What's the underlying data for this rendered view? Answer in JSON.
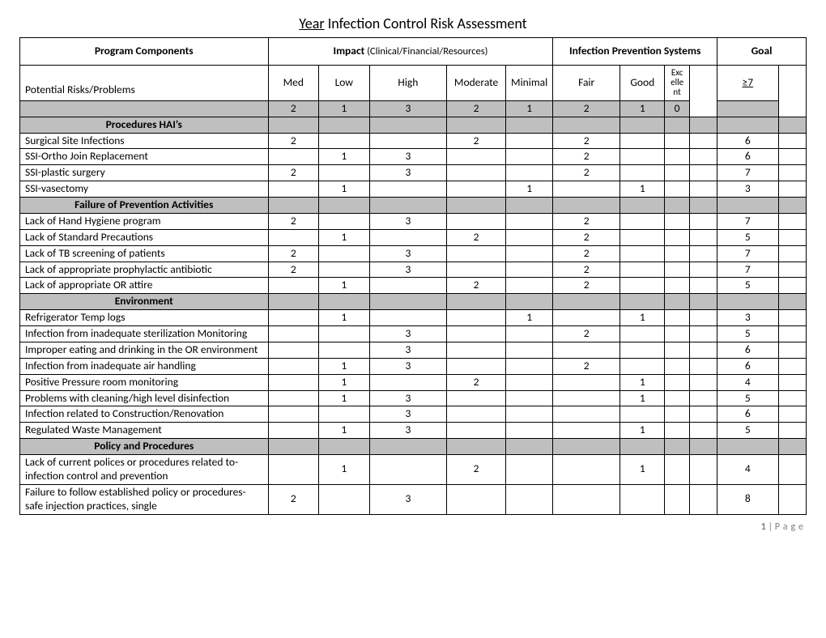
{
  "title": {
    "underlined": "Year",
    "rest": " Infection Control Risk Assessment"
  },
  "top_headers": {
    "program_components": "Program Components",
    "impact": "Impact",
    "impact_paren": " (Clinical/Financial/Resources)",
    "infection_prev": "Infection Prevention Systems",
    "goal": "Goal"
  },
  "sub_headers": {
    "potential": "Potential Risks/Problems",
    "med": "Med",
    "low": "Low",
    "high": "High",
    "moderate": "Moderate",
    "minimal": "Minimal",
    "fair": "Fair",
    "good": "Good",
    "excellent": "Excellent",
    "gt7": "≥7"
  },
  "score_row": {
    "c1": "2",
    "c2": "1",
    "c3": "3",
    "c4": "2",
    "c5": "1",
    "c6": "2",
    "c7": "1",
    "c8": "0"
  },
  "sections": [
    {
      "type": "header",
      "label": "Procedures HAI’s"
    },
    {
      "type": "row",
      "label": "Surgical Site Infections",
      "cells": [
        "2",
        "",
        "",
        "2",
        "",
        "2",
        "",
        "",
        "",
        "6",
        ""
      ]
    },
    {
      "type": "row",
      "label": "SSI-Ortho Join Replacement",
      "cells": [
        "",
        "1",
        "3",
        "",
        "",
        "2",
        "",
        "",
        "",
        "6",
        ""
      ]
    },
    {
      "type": "row",
      "label": "SSI-plastic surgery",
      "cells": [
        "2",
        "",
        "3",
        "",
        "",
        "2",
        "",
        "",
        "",
        "7",
        ""
      ]
    },
    {
      "type": "row",
      "label": "SSI-vasectomy",
      "cells": [
        "",
        "1",
        "",
        "",
        "1",
        "",
        "1",
        "",
        "",
        "3",
        ""
      ]
    },
    {
      "type": "header",
      "label": "Failure of Prevention Activities"
    },
    {
      "type": "row",
      "label": "Lack of Hand Hygiene program",
      "cells": [
        "2",
        "",
        "3",
        "",
        "",
        "2",
        "",
        "",
        "",
        "7",
        ""
      ]
    },
    {
      "type": "row",
      "label": "Lack of Standard Precautions",
      "cells": [
        "",
        "1",
        "",
        "2",
        "",
        "2",
        "",
        "",
        "",
        "5",
        ""
      ]
    },
    {
      "type": "row",
      "label": "Lack of TB screening of patients",
      "cells": [
        "2",
        "",
        "3",
        "",
        "",
        "2",
        "",
        "",
        "",
        "7",
        ""
      ]
    },
    {
      "type": "row",
      "label": "Lack of appropriate prophylactic antibiotic",
      "cells": [
        "2",
        "",
        "3",
        "",
        "",
        "2",
        "",
        "",
        "",
        "7",
        ""
      ]
    },
    {
      "type": "row",
      "label": "Lack of appropriate OR attire",
      "cells": [
        "",
        "1",
        "",
        "2",
        "",
        "2",
        "",
        "",
        "",
        "5",
        ""
      ]
    },
    {
      "type": "header",
      "label": "Environment"
    },
    {
      "type": "row",
      "label": "Refrigerator Temp logs",
      "cells": [
        "",
        "1",
        "",
        "",
        "1",
        "",
        "1",
        "",
        "",
        "3",
        ""
      ]
    },
    {
      "type": "row",
      "label": "Infection from inadequate sterilization Monitoring",
      "cells": [
        "",
        "",
        "3",
        "",
        "",
        "2",
        "",
        "",
        "",
        "5",
        ""
      ]
    },
    {
      "type": "row",
      "label": "Improper eating and drinking in the OR environment",
      "cells": [
        "",
        "",
        "3",
        "",
        "",
        "",
        "",
        "",
        "",
        "6",
        ""
      ]
    },
    {
      "type": "row",
      "label": "Infection from inadequate air handling",
      "cells": [
        "",
        "1",
        "3",
        "",
        "",
        "2",
        "",
        "",
        "",
        "6",
        ""
      ]
    },
    {
      "type": "row",
      "label": "Positive Pressure room monitoring",
      "cells": [
        "",
        "1",
        "",
        "2",
        "",
        "",
        "1",
        "",
        "",
        "4",
        ""
      ]
    },
    {
      "type": "row",
      "label": "Problems with cleaning/high level disinfection",
      "cells": [
        "",
        "1",
        "3",
        "",
        "",
        "",
        "1",
        "",
        "",
        "5",
        ""
      ]
    },
    {
      "type": "row",
      "label": "Infection related to Construction/Renovation",
      "cells": [
        "",
        "",
        "3",
        "",
        "",
        "",
        "",
        "",
        "",
        "6",
        ""
      ]
    },
    {
      "type": "row",
      "label": "Regulated Waste Management",
      "cells": [
        "",
        "1",
        "3",
        "",
        "",
        "",
        "1",
        "",
        "",
        "5",
        ""
      ]
    },
    {
      "type": "header",
      "label": "Policy and Procedures"
    },
    {
      "type": "row",
      "label": "Lack of current polices or procedures related to-infection control and prevention",
      "cells": [
        "",
        "1",
        "",
        "2",
        "",
        "",
        "1",
        "",
        "",
        "4",
        ""
      ]
    },
    {
      "type": "row",
      "label": "Failure to follow established policy or procedures-safe injection practices, single",
      "cells": [
        "2",
        "",
        "3",
        "",
        "",
        "",
        "",
        "",
        "",
        "8",
        ""
      ]
    }
  ],
  "footer": {
    "pagenum": "1",
    "label": "Page"
  },
  "colors": {
    "shaded": "#bfbfbf",
    "border": "#000000",
    "footer_gray": "#7f7f7f"
  }
}
